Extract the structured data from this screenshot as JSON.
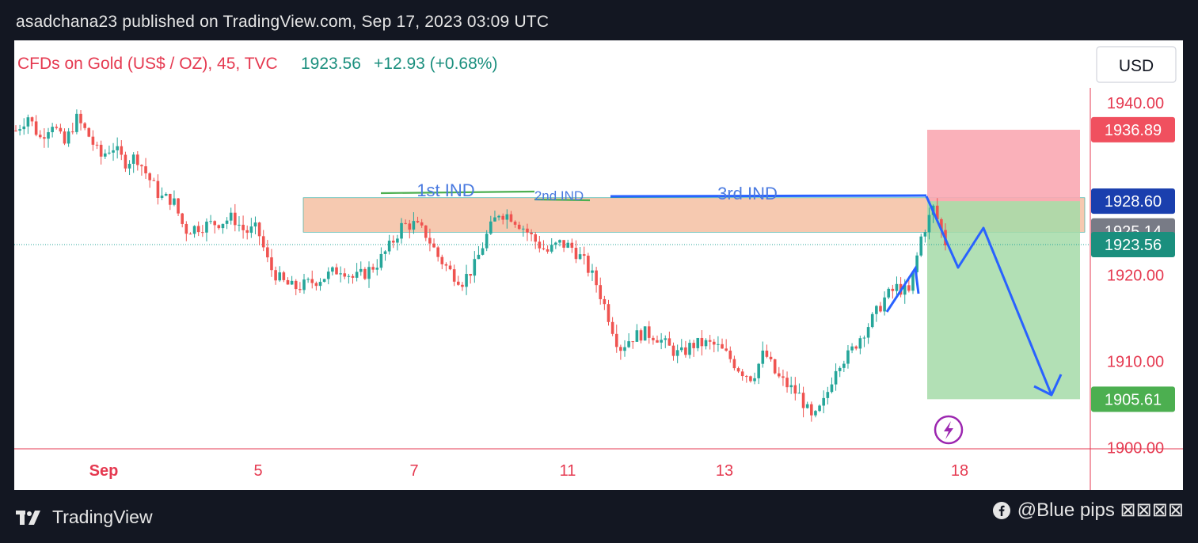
{
  "publish_line": "asadchana23 published on TradingView.com, Sep 17, 2023 03:09 UTC",
  "symbol_header": {
    "name": "CFDs on Gold (US$ / OZ), 45, TVC",
    "price": "1923.56",
    "change": "+12.93 (+0.68%)"
  },
  "currency_button": "USD",
  "footer": {
    "brand": "TradingView",
    "credit": "@Blue pips ⊠⊠⊠⊠"
  },
  "colors": {
    "up": "#26a69a",
    "down": "#ef5350",
    "red_text": "#e53950",
    "blue_annotation": "#2962ff",
    "zone_fill": "#f5c3a7",
    "stop_zone": "#f9a8b3",
    "target_zone": "#a5dba8",
    "badge_red": "#f0505f",
    "badge_blue": "#1a3fae",
    "badge_gray": "#787b86",
    "badge_teal": "#1b8f7e",
    "badge_green": "#4caf50",
    "bolt_icon": "#9c27b0"
  },
  "chart_data": {
    "type": "candlestick",
    "timeframe": "45",
    "price_axis": {
      "ticks": [
        1940.0,
        1920.0,
        1910.0,
        1900.0
      ],
      "tick_labels": [
        "1940.00",
        "1920.00",
        "1910.00",
        "1900.00"
      ],
      "range": [
        1899.3,
        1941.2
      ]
    },
    "time_axis": {
      "labels": [
        "Sep",
        "5",
        "7",
        "11",
        "13",
        "18"
      ]
    },
    "price_badges": [
      {
        "value": 1936.89,
        "label": "1936.89",
        "role": "stop-loss"
      },
      {
        "value": 1928.6,
        "label": "1928.60",
        "role": "entry"
      },
      {
        "value": 1925.14,
        "label": "1925.14",
        "role": "zone-low"
      },
      {
        "value": 1923.56,
        "label": "1923.56",
        "role": "last-price"
      },
      {
        "value": 1905.61,
        "label": "1905.61",
        "role": "take-profit"
      }
    ],
    "resistance_zone": {
      "top": 1929.0,
      "bottom": 1925.0
    },
    "annotations": [
      "1st IND",
      "2nd IND",
      "3rd IND"
    ],
    "price_path_estimate": [
      [
        0,
        1936.8
      ],
      [
        6,
        1938.5
      ],
      [
        12,
        1935.9
      ],
      [
        18,
        1937.8
      ],
      [
        24,
        1935.1
      ],
      [
        30,
        1938.2
      ],
      [
        36,
        1936.3
      ],
      [
        42,
        1933.7
      ],
      [
        48,
        1935.0
      ],
      [
        54,
        1933.1
      ],
      [
        60,
        1933.8
      ],
      [
        66,
        1931.3
      ],
      [
        72,
        1929.0
      ],
      [
        78,
        1928.8
      ],
      [
        84,
        1925.2
      ],
      [
        90,
        1925.6
      ],
      [
        96,
        1925.9
      ],
      [
        102,
        1926.2
      ],
      [
        108,
        1926.7
      ],
      [
        114,
        1925.0
      ],
      [
        120,
        1925.4
      ],
      [
        126,
        1921.0
      ],
      [
        132,
        1919.3
      ],
      [
        138,
        1918.5
      ],
      [
        144,
        1918.9
      ],
      [
        150,
        1919.5
      ],
      [
        156,
        1920.1
      ],
      [
        162,
        1920.9
      ],
      [
        168,
        1919.6
      ],
      [
        174,
        1920.3
      ],
      [
        180,
        1921.5
      ],
      [
        186,
        1923.4
      ],
      [
        192,
        1925.8
      ],
      [
        198,
        1925.9
      ],
      [
        204,
        1924.7
      ],
      [
        210,
        1922.1
      ],
      [
        216,
        1920.4
      ],
      [
        222,
        1919.3
      ],
      [
        228,
        1921.1
      ],
      [
        234,
        1924.6
      ],
      [
        240,
        1927.3
      ],
      [
        246,
        1926.9
      ],
      [
        252,
        1925.6
      ],
      [
        258,
        1924.0
      ],
      [
        264,
        1922.7
      ],
      [
        270,
        1923.7
      ],
      [
        276,
        1923.3
      ],
      [
        282,
        1921.7
      ],
      [
        288,
        1919.3
      ],
      [
        294,
        1915.6
      ],
      [
        300,
        1911.5
      ],
      [
        306,
        1912.8
      ],
      [
        312,
        1913.3
      ],
      [
        318,
        1913.0
      ],
      [
        324,
        1911.7
      ],
      [
        330,
        1910.7
      ],
      [
        336,
        1911.9
      ],
      [
        342,
        1912.1
      ],
      [
        348,
        1911.8
      ],
      [
        354,
        1910.6
      ],
      [
        360,
        1909.0
      ],
      [
        366,
        1908.1
      ],
      [
        372,
        1911.1
      ],
      [
        378,
        1908.3
      ],
      [
        384,
        1907.1
      ],
      [
        390,
        1905.9
      ],
      [
        396,
        1903.0
      ],
      [
        402,
        1905.4
      ],
      [
        408,
        1909.8
      ],
      [
        414,
        1910.7
      ],
      [
        420,
        1913.0
      ],
      [
        426,
        1915.0
      ],
      [
        432,
        1917.4
      ],
      [
        438,
        1918.6
      ],
      [
        444,
        1917.9
      ],
      [
        450,
        1924.5
      ],
      [
        456,
        1927.8
      ],
      [
        462,
        1923.8
      ]
    ],
    "projection_path": [
      [
        1928.6
      ],
      [
        1920.7
      ],
      [
        1924.8
      ],
      [
        1906.6
      ]
    ]
  }
}
